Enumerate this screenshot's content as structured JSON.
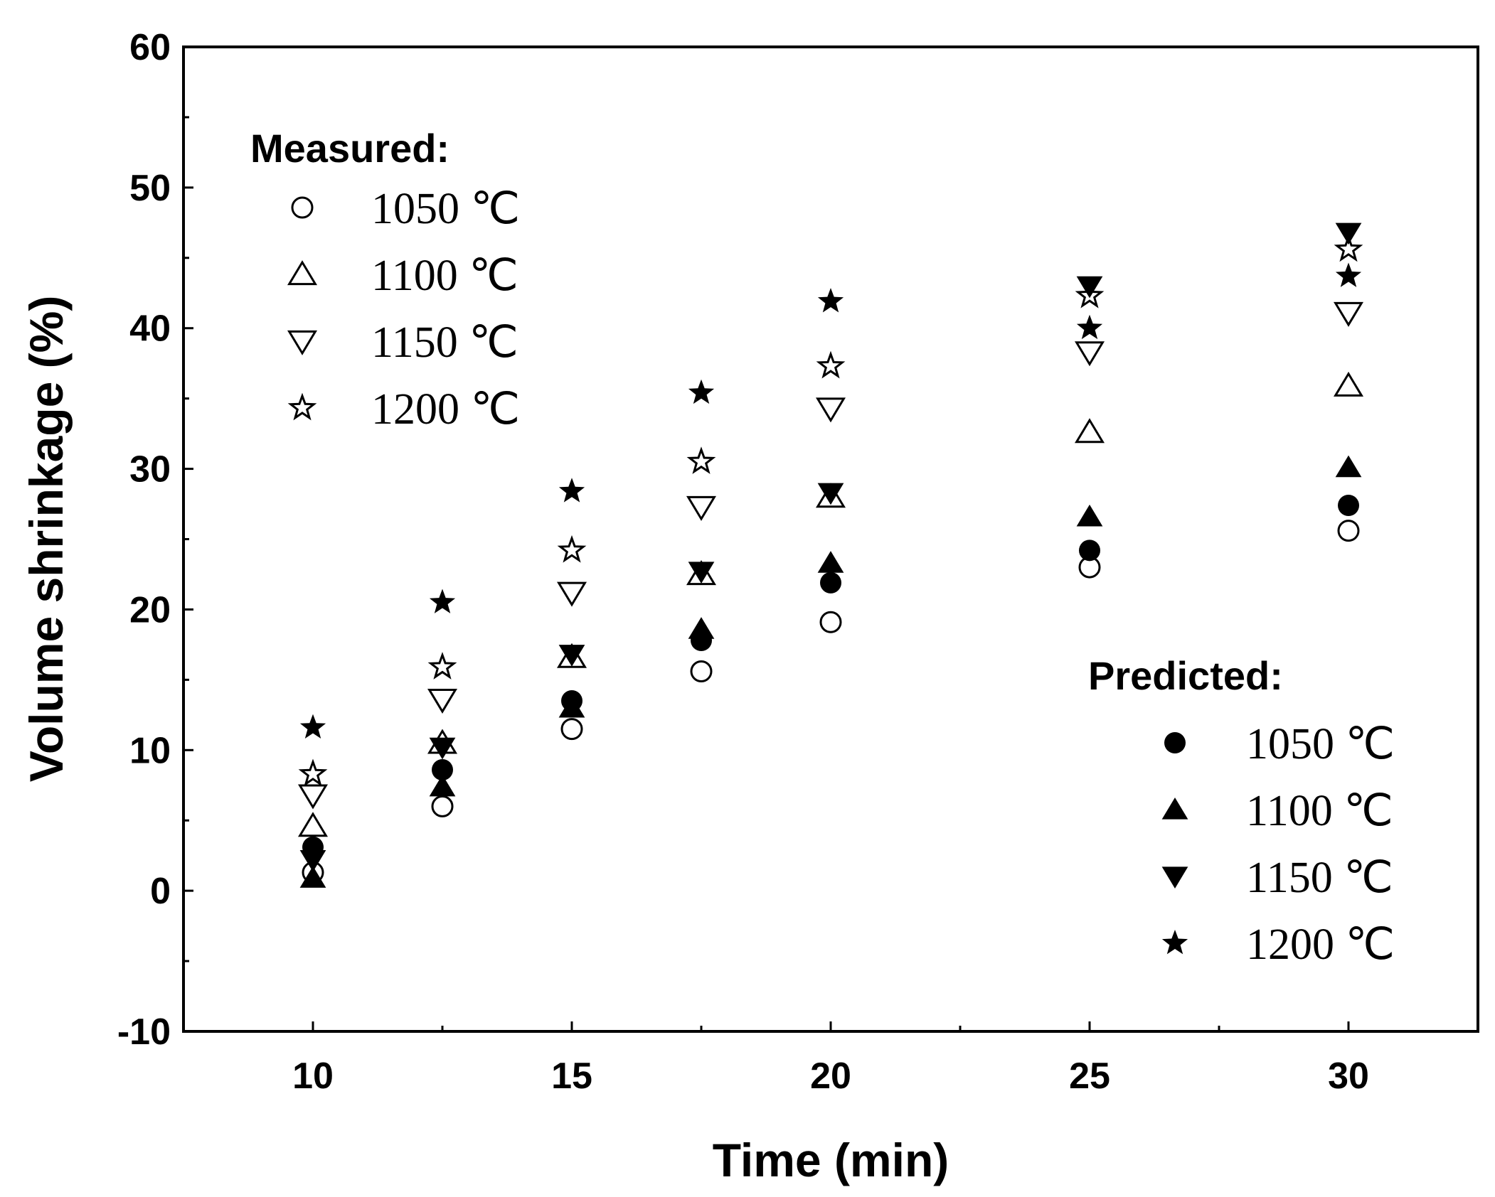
{
  "chart_data": {
    "type": "scatter",
    "xlabel": "Time (min)",
    "ylabel": "Volume shrinkage (%)",
    "xlim": [
      7.5,
      32.5
    ],
    "ylim": [
      -10,
      60
    ],
    "xticks": [
      10,
      15,
      20,
      25,
      30
    ],
    "yticks": [
      -10,
      0,
      10,
      20,
      30,
      40,
      50,
      60
    ],
    "legend_groups": [
      {
        "title": "Measured:",
        "position": "top-left"
      },
      {
        "title": "Predicted:",
        "position": "bottom-right"
      }
    ],
    "series": [
      {
        "name": "1050 ℃",
        "group": "Measured:",
        "marker": "circle",
        "filled": false,
        "x": [
          10,
          12.5,
          15,
          17.5,
          20,
          25,
          30
        ],
        "y": [
          1.3,
          6.0,
          11.5,
          15.6,
          19.1,
          23.0,
          25.6
        ]
      },
      {
        "name": "1100 ℃",
        "group": "Measured:",
        "marker": "triangle-up",
        "filled": false,
        "x": [
          10,
          12.5,
          15,
          17.5,
          20,
          25,
          30
        ],
        "y": [
          4.6,
          10.5,
          16.6,
          22.5,
          28.0,
          32.6,
          35.9
        ]
      },
      {
        "name": "1150 ℃",
        "group": "Measured:",
        "marker": "triangle-down",
        "filled": false,
        "x": [
          10,
          12.5,
          15,
          17.5,
          20,
          25,
          30
        ],
        "y": [
          6.8,
          13.6,
          21.2,
          27.3,
          34.3,
          38.3,
          41.1
        ]
      },
      {
        "name": "1200 ℃",
        "group": "Measured:",
        "marker": "star",
        "filled": false,
        "x": [
          10,
          12.5,
          15,
          17.5,
          20,
          25,
          30
        ],
        "y": [
          8.3,
          15.9,
          24.2,
          30.5,
          37.3,
          42.3,
          45.6
        ]
      },
      {
        "name": "1050 ℃",
        "group": "Predicted:",
        "marker": "circle",
        "filled": true,
        "x": [
          10,
          12.5,
          15,
          17.5,
          20,
          25,
          30
        ],
        "y": [
          3.1,
          8.6,
          13.5,
          17.8,
          21.9,
          24.2,
          27.4
        ]
      },
      {
        "name": "1100 ℃",
        "group": "Predicted:",
        "marker": "triangle-up",
        "filled": true,
        "x": [
          10,
          12.5,
          15,
          17.5,
          20,
          25,
          30
        ],
        "y": [
          0.9,
          7.4,
          13.0,
          18.6,
          23.3,
          26.6,
          30.1
        ]
      },
      {
        "name": "1150 ℃",
        "group": "Predicted:",
        "marker": "triangle-down",
        "filled": true,
        "x": [
          10,
          12.5,
          15,
          17.5,
          20,
          25,
          30
        ],
        "y": [
          2.2,
          10.2,
          16.8,
          22.7,
          28.3,
          43.0,
          46.8
        ]
      },
      {
        "name": "1200 ℃",
        "group": "Predicted:",
        "marker": "star",
        "filled": true,
        "x": [
          10,
          12.5,
          15,
          17.5,
          20,
          25,
          30
        ],
        "y": [
          11.6,
          20.5,
          28.4,
          35.4,
          41.9,
          40.0,
          43.7
        ]
      }
    ]
  }
}
